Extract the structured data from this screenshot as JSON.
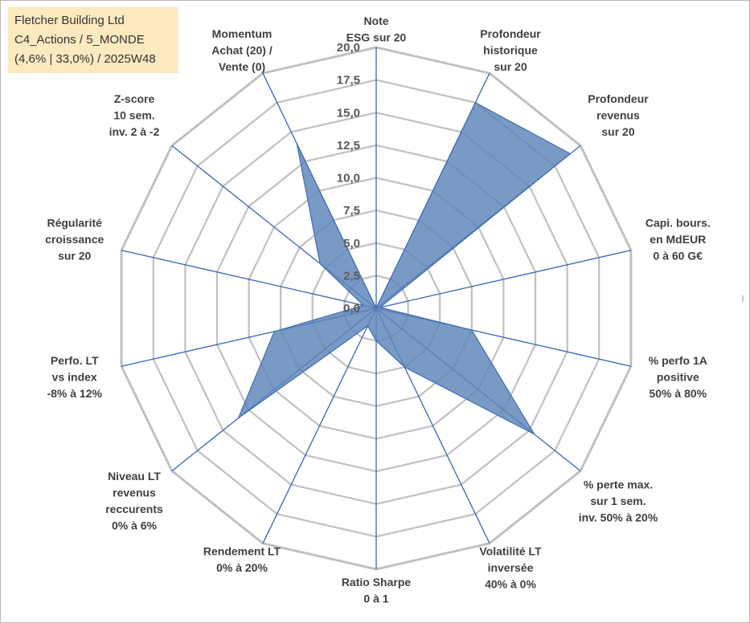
{
  "info_box": {
    "line1": "Fletcher Building Ltd",
    "line2": "C4_Actions / 5_MONDE",
    "line3": "(4,6% | 33,0%) / 2025W48"
  },
  "colors": {
    "fill": "#5b84b8",
    "stroke": "#3e6db0",
    "grid": "#c0c0c0",
    "spoke": "#3a66b0",
    "info_bg": "#fde9c0"
  },
  "chart_data": {
    "type": "radar",
    "rmin": 0,
    "rmax": 20,
    "tick_labels": [
      "0,0",
      "2,5",
      "5,0",
      "7,5",
      "10,0",
      "12,5",
      "15,0",
      "17,5",
      "20,0"
    ],
    "grid": true,
    "axes": [
      {
        "label": [
          "Note",
          "ESG sur 20"
        ],
        "value": 0
      },
      {
        "label": [
          "Profondeur",
          "historique",
          "sur 20"
        ],
        "value": 17.5
      },
      {
        "label": [
          "Profondeur",
          "revenus",
          "sur 20"
        ],
        "value": 19
      },
      {
        "label": [
          "Capi. bours.",
          "en MdEUR",
          "0 à 60 G€"
        ],
        "value": 0.3
      },
      {
        "label": [
          "% perfo 1A",
          "positive",
          "50% à 80%"
        ],
        "value": 7.5
      },
      {
        "label": [
          "% perte max.",
          "sur 1 sem.",
          "inv. 50% à 20%"
        ],
        "value": 15.5
      },
      {
        "label": [
          "Volatilité LT",
          "inversée",
          "40% à 0%"
        ],
        "value": 5
      },
      {
        "label": [
          "Ratio Sharpe",
          "0 à 1"
        ],
        "value": 2.5
      },
      {
        "label": [
          "Rendement LT",
          "0% à 20%"
        ],
        "value": 1.5
      },
      {
        "label": [
          "Niveau LT",
          "revenus",
          "reccurents",
          "0% à 6%"
        ],
        "value": 13.5
      },
      {
        "label": [
          "Perfo. LT",
          "vs index",
          "-8% à 12%"
        ],
        "value": 8
      },
      {
        "label": [
          "Régularité",
          "croissance",
          "sur 20"
        ],
        "value": 1
      },
      {
        "label": [
          "Z-score",
          "10 sem.",
          "inv. 2 à -2"
        ],
        "value": 5.5
      },
      {
        "label": [
          "Momentum",
          "Achat (20) /",
          "Vente (0)"
        ],
        "value": 14
      }
    ]
  }
}
